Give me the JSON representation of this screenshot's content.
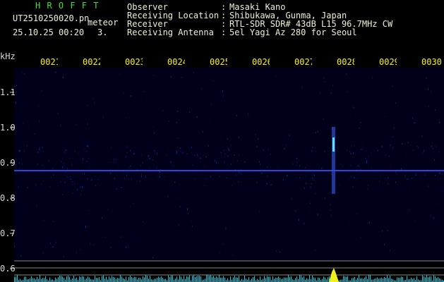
{
  "header": {
    "app": "H R O F F T",
    "file": "UT2510250020.pn",
    "mode": "meteor",
    "datetime": "25.10.25 00:20",
    "count": "3.",
    "fields": [
      {
        "label": "Observer",
        "value": "Masaki Kano"
      },
      {
        "label": "Receiving Location",
        "value": "Shibukawa, Gunma, Japan"
      },
      {
        "label": "Receiver",
        "value": "RTL-SDR SDR# 43dB L15 96.7MHz CW"
      },
      {
        "label": "Receiving Antenna",
        "value": "5el Yagi Az 280 for Seoul"
      }
    ]
  },
  "spectrogram": {
    "y_unit": "kHz",
    "y_labels": [
      "1.1",
      "1.0",
      "0.9",
      "0.8",
      "0.7",
      "0.6"
    ],
    "x_labels": [
      "0021",
      "0022",
      "0023",
      "0024",
      "0025",
      "0026",
      "0027",
      "0028",
      "0029",
      "0030"
    ]
  }
}
